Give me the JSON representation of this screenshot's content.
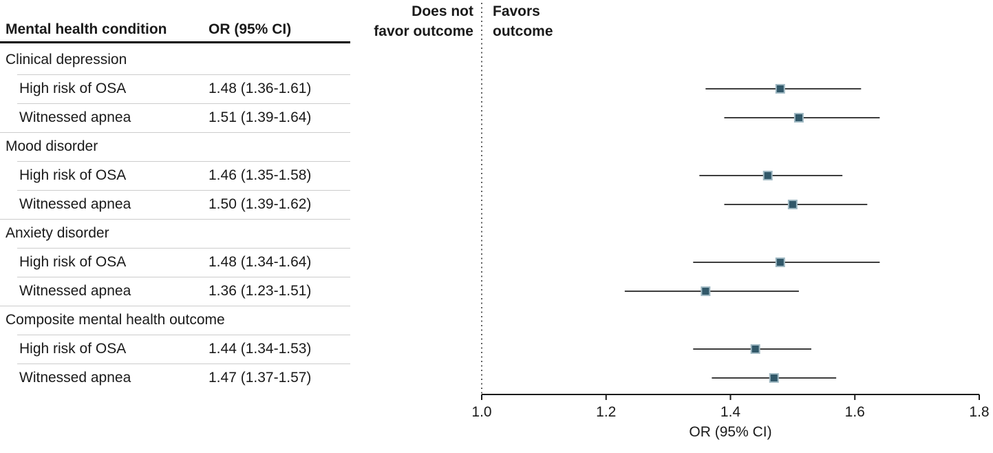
{
  "colors": {
    "text": "#1a1a1a",
    "marker_fill": "#315869",
    "marker_border": "#a0b9c3",
    "ci_line": "#3d3d3d",
    "axis": "#1a1a1a",
    "reference_line": "#4d4d4d",
    "separator": "#cccccc",
    "header_rule": "#000000"
  },
  "table": {
    "col_condition": "Mental health condition",
    "col_or": "OR (95% CI)",
    "rows": [
      {
        "type": "group",
        "label": "Clinical depression"
      },
      {
        "type": "item",
        "label": "High risk of OSA",
        "or_text": "1.48 (1.36-1.61)"
      },
      {
        "type": "item",
        "label": "Witnessed apnea",
        "or_text": "1.51 (1.39-1.64)"
      },
      {
        "type": "group",
        "label": "Mood disorder"
      },
      {
        "type": "item",
        "label": "High risk of OSA",
        "or_text": "1.46 (1.35-1.58)"
      },
      {
        "type": "item",
        "label": "Witnessed apnea",
        "or_text": "1.50 (1.39-1.62)"
      },
      {
        "type": "group",
        "label": "Anxiety disorder"
      },
      {
        "type": "item",
        "label": "High risk of OSA",
        "or_text": "1.48 (1.34-1.64)"
      },
      {
        "type": "item",
        "label": "Witnessed apnea",
        "or_text": "1.36 (1.23-1.51)"
      },
      {
        "type": "group",
        "label": "Composite mental health outcome"
      },
      {
        "type": "item",
        "label": "High risk of OSA",
        "or_text": "1.44 (1.34-1.53)"
      },
      {
        "type": "item",
        "label": "Witnessed apnea",
        "or_text": "1.47 (1.37-1.57)"
      }
    ]
  },
  "chart_data": {
    "type": "scatter",
    "subtype": "forest-plot",
    "title": "",
    "xlabel": "OR (95% CI)",
    "xlim": [
      1.0,
      1.8
    ],
    "xticks": [
      1.0,
      1.2,
      1.4,
      1.6,
      1.8
    ],
    "reference_line": 1.0,
    "left_label_lines": [
      "Does not",
      "favor outcome"
    ],
    "right_label_lines": [
      "Favors",
      "outcome"
    ],
    "series": [
      {
        "group": "Clinical depression",
        "label": "High risk of OSA",
        "or": 1.48,
        "ci": [
          1.36,
          1.61
        ]
      },
      {
        "group": "Clinical depression",
        "label": "Witnessed apnea",
        "or": 1.51,
        "ci": [
          1.39,
          1.64
        ]
      },
      {
        "group": "Mood disorder",
        "label": "High risk of OSA",
        "or": 1.46,
        "ci": [
          1.35,
          1.58
        ]
      },
      {
        "group": "Mood disorder",
        "label": "Witnessed apnea",
        "or": 1.5,
        "ci": [
          1.39,
          1.62
        ]
      },
      {
        "group": "Anxiety disorder",
        "label": "High risk of OSA",
        "or": 1.48,
        "ci": [
          1.34,
          1.64
        ]
      },
      {
        "group": "Anxiety disorder",
        "label": "Witnessed apnea",
        "or": 1.36,
        "ci": [
          1.23,
          1.51
        ]
      },
      {
        "group": "Composite mental health outcome",
        "label": "High risk of OSA",
        "or": 1.44,
        "ci": [
          1.34,
          1.53
        ]
      },
      {
        "group": "Composite mental health outcome",
        "label": "Witnessed apnea",
        "or": 1.47,
        "ci": [
          1.37,
          1.57
        ]
      }
    ]
  }
}
